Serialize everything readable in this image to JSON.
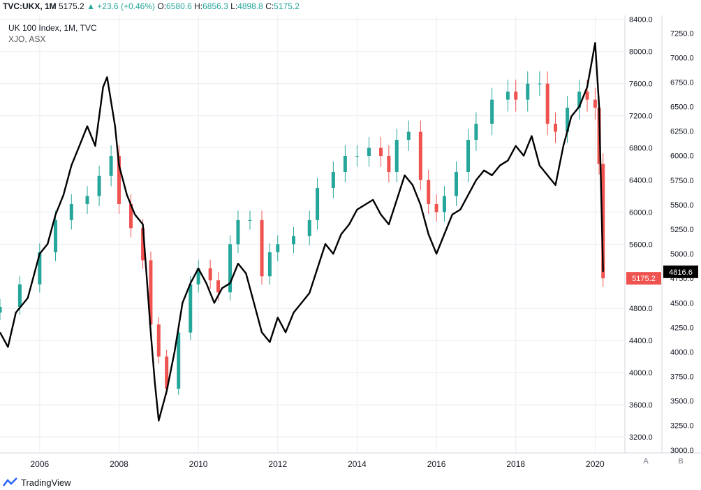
{
  "header": {
    "symbol": "TVC:UKX, 1M",
    "last": "5175.2",
    "change_arrow": "▲",
    "change": "+23.6 (+0.46%)",
    "o_label": "O:",
    "o": "6580.6",
    "h_label": "H:",
    "h": "6856.3",
    "l_label": "L:",
    "l": "4898.8",
    "c_label": "C:",
    "c": "5175.2"
  },
  "legend": {
    "line1": "UK 100 Index, 1M, TVC",
    "line2": "XJO, ASX"
  },
  "footer": {
    "brand": "TradingView"
  },
  "axis_buttons": {
    "a": "A",
    "b": "B"
  },
  "colors": {
    "up": "#26a69a",
    "down": "#ef5350",
    "line": "#000000",
    "grid": "#e9ecf1"
  },
  "chart_data": {
    "type": "line",
    "x_ticks": [
      "2006",
      "2008",
      "2010",
      "2012",
      "2014",
      "2016",
      "2018",
      "2020"
    ],
    "xlim": [
      2005.0,
      2020.75
    ],
    "left_axis": {
      "ticks": [
        "8400.0",
        "8000.0",
        "7600.0",
        "7200.0",
        "6800.0",
        "6400.0",
        "6000.0",
        "5600.0",
        "4800.0",
        "4400.0",
        "4000.0",
        "3600.0",
        "3200.0"
      ],
      "ylim": [
        3000,
        8450
      ],
      "last_label": "5175.2"
    },
    "right_axis": {
      "ticks": [
        "7250.0",
        "7000.0",
        "6750.0",
        "6500.0",
        "6250.0",
        "6000.0",
        "5750.0",
        "5500.0",
        "5250.0",
        "5000.0",
        "4750.0",
        "4500.0",
        "4250.0",
        "4000.0",
        "3750.0",
        "3500.0",
        "3250.0",
        "3000.0"
      ],
      "ylim": [
        2970,
        7430
      ],
      "last_label": "4816.6"
    },
    "series": [
      {
        "name": "UK 100 Index",
        "kind": "candles",
        "x": [
          2005.0,
          2005.5,
          2006.0,
          2006.4,
          2006.8,
          2007.2,
          2007.5,
          2007.8,
          2008.0,
          2008.3,
          2008.6,
          2008.8,
          2009.0,
          2009.2,
          2009.5,
          2009.8,
          2010.0,
          2010.3,
          2010.5,
          2010.8,
          2011.0,
          2011.3,
          2011.6,
          2011.8,
          2012.0,
          2012.4,
          2012.8,
          2013.0,
          2013.4,
          2013.7,
          2014.0,
          2014.3,
          2014.6,
          2014.8,
          2015.0,
          2015.3,
          2015.6,
          2015.8,
          2016.0,
          2016.2,
          2016.5,
          2016.8,
          2017.0,
          2017.4,
          2017.8,
          2018.0,
          2018.3,
          2018.6,
          2018.8,
          2019.0,
          2019.3,
          2019.6,
          2019.8,
          2020.0,
          2020.1,
          2020.2
        ],
        "close": [
          4820,
          5100,
          5500,
          5900,
          6100,
          6200,
          6450,
          6700,
          6100,
          5800,
          5400,
          4600,
          4200,
          3800,
          4500,
          5100,
          5300,
          5150,
          5000,
          5600,
          5900,
          5900,
          5200,
          5500,
          5600,
          5700,
          5900,
          6300,
          6500,
          6700,
          6700,
          6800,
          6700,
          6500,
          6900,
          7000,
          6400,
          6100,
          6000,
          6200,
          6500,
          6900,
          7100,
          7400,
          7500,
          7400,
          7600,
          7600,
          7100,
          7000,
          7300,
          7500,
          7400,
          7300,
          6600,
          5175
        ]
      },
      {
        "name": "XJO",
        "kind": "line",
        "x": [
          2005.0,
          2005.2,
          2005.4,
          2005.7,
          2006.0,
          2006.2,
          2006.4,
          2006.6,
          2006.8,
          2007.0,
          2007.2,
          2007.4,
          2007.6,
          2007.7,
          2007.9,
          2008.0,
          2008.2,
          2008.4,
          2008.6,
          2008.8,
          2008.9,
          2009.0,
          2009.2,
          2009.4,
          2009.6,
          2009.8,
          2010.0,
          2010.2,
          2010.4,
          2010.6,
          2010.8,
          2011.0,
          2011.2,
          2011.4,
          2011.6,
          2011.8,
          2012.0,
          2012.2,
          2012.4,
          2012.6,
          2012.8,
          2013.0,
          2013.2,
          2013.4,
          2013.6,
          2013.8,
          2014.0,
          2014.2,
          2014.4,
          2014.6,
          2014.8,
          2015.0,
          2015.2,
          2015.4,
          2015.6,
          2015.8,
          2016.0,
          2016.2,
          2016.4,
          2016.6,
          2016.8,
          2017.0,
          2017.2,
          2017.4,
          2017.6,
          2017.8,
          2018.0,
          2018.2,
          2018.4,
          2018.6,
          2018.8,
          2019.0,
          2019.2,
          2019.4,
          2019.6,
          2019.8,
          2020.0,
          2020.1,
          2020.2
        ],
        "values": [
          4200,
          4050,
          4400,
          4550,
          5000,
          5100,
          5400,
          5600,
          5900,
          6100,
          6300,
          6100,
          6700,
          6800,
          6300,
          5900,
          5600,
          5400,
          5300,
          4200,
          3700,
          3300,
          3600,
          4000,
          4500,
          4700,
          4850,
          4700,
          4500,
          4650,
          4700,
          4900,
          4800,
          4500,
          4200,
          4100,
          4350,
          4200,
          4400,
          4500,
          4600,
          4850,
          5100,
          5000,
          5200,
          5300,
          5450,
          5500,
          5550,
          5400,
          5300,
          5550,
          5800,
          5700,
          5500,
          5200,
          5000,
          5200,
          5400,
          5450,
          5600,
          5750,
          5850,
          5800,
          5900,
          5950,
          6100,
          6000,
          6200,
          5900,
          5800,
          5700,
          6100,
          6400,
          6500,
          6700,
          7150,
          6500,
          4816.6
        ]
      }
    ]
  }
}
